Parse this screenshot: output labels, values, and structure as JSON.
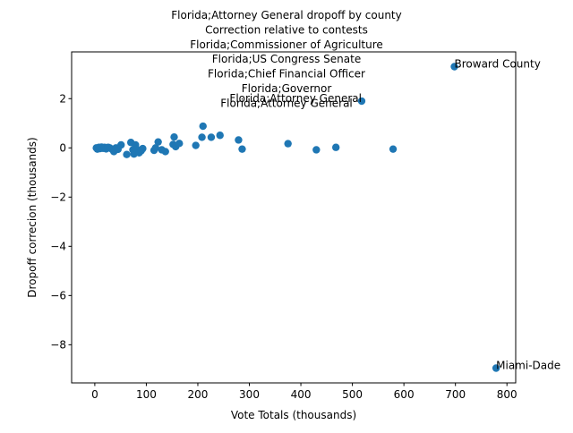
{
  "chart_data": {
    "type": "scatter",
    "title_lines": [
      "Florida;Attorney General dropoff by county",
      "Correction relative to contests",
      "Florida;Commissioner of Agriculture",
      "Florida;US Congress Senate",
      "Florida;Chief Financial Officer",
      "Florida;Governor",
      "Florida;Attorney General"
    ],
    "xlabel": "Vote Totals (thousands)",
    "ylabel": "Dropoff correcion (thousands)",
    "xlim": [
      -45,
      817
    ],
    "ylim": [
      -9.55,
      3.9
    ],
    "xticks": [
      0,
      100,
      200,
      300,
      400,
      500,
      600,
      700,
      800
    ],
    "yticks": [
      -8,
      -6,
      -4,
      -2,
      0,
      2
    ],
    "grid": false,
    "marker_color": "#1f77b4",
    "points": [
      {
        "x": 3,
        "y": 0.0
      },
      {
        "x": 5,
        "y": -0.05
      },
      {
        "x": 8,
        "y": 0.02
      },
      {
        "x": 10,
        "y": -0.03
      },
      {
        "x": 13,
        "y": 0.03
      },
      {
        "x": 16,
        "y": -0.02
      },
      {
        "x": 19,
        "y": 0.02
      },
      {
        "x": 22,
        "y": -0.04
      },
      {
        "x": 26,
        "y": 0.02
      },
      {
        "x": 29,
        "y": 0.0
      },
      {
        "x": 33,
        "y": -0.05
      },
      {
        "x": 37,
        "y": -0.15
      },
      {
        "x": 41,
        "y": 0.0
      },
      {
        "x": 45,
        "y": -0.06
      },
      {
        "x": 51,
        "y": 0.12
      },
      {
        "x": 62,
        "y": -0.27
      },
      {
        "x": 70,
        "y": 0.22
      },
      {
        "x": 74,
        "y": -0.08
      },
      {
        "x": 76,
        "y": -0.25
      },
      {
        "x": 79,
        "y": 0.12
      },
      {
        "x": 81,
        "y": -0.05
      },
      {
        "x": 86,
        "y": -0.2
      },
      {
        "x": 90,
        "y": -0.12
      },
      {
        "x": 93,
        "y": -0.03
      },
      {
        "x": 115,
        "y": -0.1
      },
      {
        "x": 118,
        "y": 0.0
      },
      {
        "x": 123,
        "y": 0.24
      },
      {
        "x": 130,
        "y": -0.08
      },
      {
        "x": 137,
        "y": -0.15
      },
      {
        "x": 152,
        "y": 0.14
      },
      {
        "x": 154,
        "y": 0.44
      },
      {
        "x": 157,
        "y": 0.05
      },
      {
        "x": 164,
        "y": 0.18
      },
      {
        "x": 196,
        "y": 0.1
      },
      {
        "x": 208,
        "y": 0.43
      },
      {
        "x": 210,
        "y": 0.88
      },
      {
        "x": 226,
        "y": 0.43
      },
      {
        "x": 243,
        "y": 0.51
      },
      {
        "x": 279,
        "y": 0.32
      },
      {
        "x": 286,
        "y": -0.05
      },
      {
        "x": 375,
        "y": 0.17
      },
      {
        "x": 430,
        "y": -0.08
      },
      {
        "x": 468,
        "y": 0.02
      },
      {
        "x": 579,
        "y": -0.05
      },
      {
        "x": 518,
        "y": 1.9,
        "label": "Florida;Attorney General"
      },
      {
        "x": 698,
        "y": 3.3,
        "label": "Broward County"
      },
      {
        "x": 779,
        "y": -8.95,
        "label": "Miami-Dade"
      }
    ]
  }
}
